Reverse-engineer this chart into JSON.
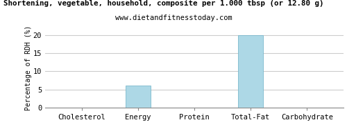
{
  "title": "Shortening, vegetable, household, composite per 1.000 tbsp (or 12.80 g)",
  "subtitle": "www.dietandfitnesstoday.com",
  "ylabel": "Percentage of RDH (%)",
  "categories": [
    "Cholesterol",
    "Energy",
    "Protein",
    "Total-Fat",
    "Carbohydrate"
  ],
  "values": [
    0,
    6,
    0,
    20,
    0
  ],
  "bar_color": "#add8e6",
  "ylim": [
    0,
    22
  ],
  "yticks": [
    0,
    5,
    10,
    15,
    20
  ],
  "background_color": "#ffffff",
  "grid_color": "#cccccc",
  "title_fontsize": 7.8,
  "subtitle_fontsize": 7.5,
  "label_fontsize": 7.5,
  "ylabel_fontsize": 7.0,
  "bar_width": 0.45,
  "edge_color": "#7ab8cc"
}
